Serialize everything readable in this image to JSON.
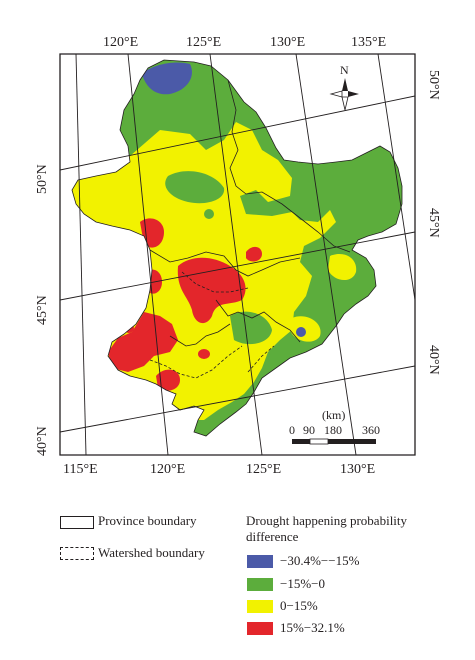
{
  "map": {
    "top_longitudes": [
      "120°E",
      "125°E",
      "130°E",
      "135°E"
    ],
    "bottom_longitudes": [
      "115°E",
      "120°E",
      "125°E",
      "130°E"
    ],
    "left_latitudes": [
      "50°N",
      "45°N",
      "40°N"
    ],
    "right_latitudes": [
      "50°N",
      "45°N",
      "40°N"
    ],
    "north_label": "N",
    "scale_unit": "(km)",
    "scale_ticks": [
      "0",
      "90",
      "180",
      "360"
    ],
    "colors": {
      "class1": "#4b5aa8",
      "class2": "#5cad3c",
      "class3": "#f2f200",
      "class4": "#e3262b"
    }
  },
  "legend": {
    "province_boundary": "Province boundary",
    "watershed_boundary": "Watershed boundary",
    "title": "Drought happening probability difference",
    "classes": [
      {
        "label": "−30.4%−−15%",
        "color": "#4b5aa8"
      },
      {
        "label": "−15%−0",
        "color": "#5cad3c"
      },
      {
        "label": "0−15%",
        "color": "#f2f200"
      },
      {
        "label": "15%−32.1%",
        "color": "#e3262b"
      }
    ]
  }
}
